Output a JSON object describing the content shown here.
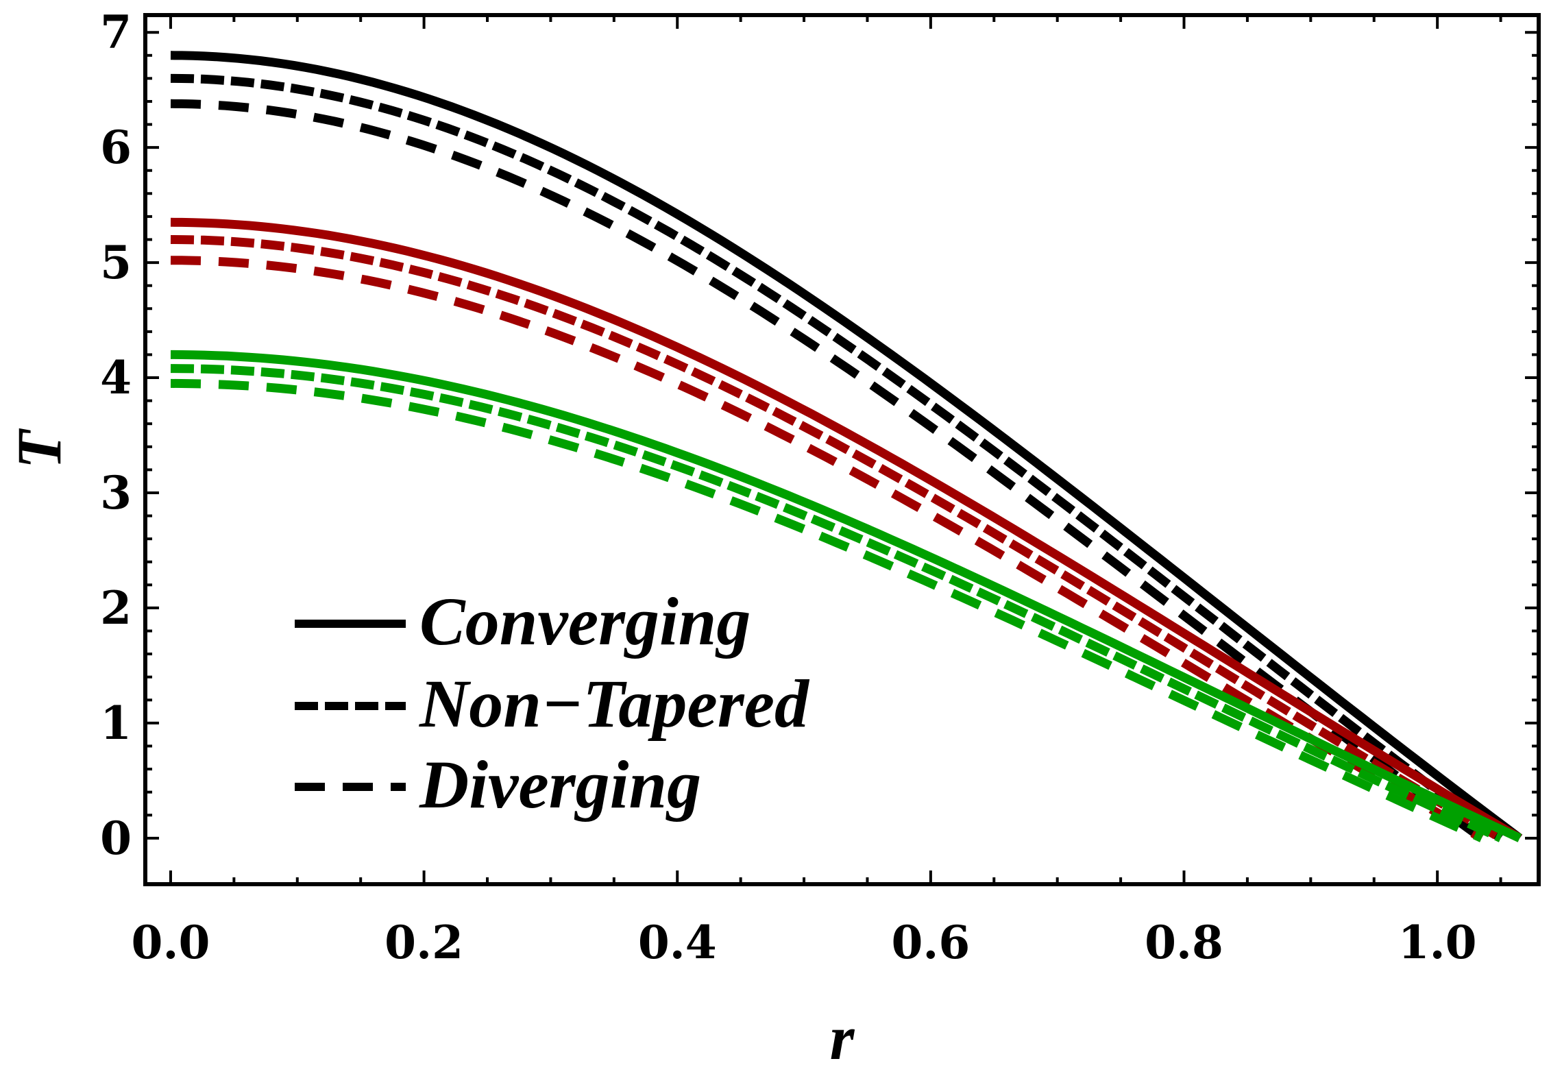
{
  "chart_data": {
    "type": "line",
    "title": "",
    "xlabel": "r",
    "ylabel": "T",
    "xlim": [
      -0.02,
      1.08
    ],
    "ylim": [
      -0.4,
      7.15
    ],
    "xticks": [
      "0.0",
      "0.2",
      "0.4",
      "0.6",
      "0.8",
      "1.0"
    ],
    "xtick_values": [
      0.0,
      0.2,
      0.4,
      0.6,
      0.8,
      1.0
    ],
    "yticks": [
      "0",
      "1",
      "2",
      "3",
      "4",
      "5",
      "6",
      "7"
    ],
    "ytick_values": [
      0,
      1,
      2,
      3,
      4,
      5,
      6,
      7
    ],
    "grid": false,
    "legend": {
      "position": "bottom-left",
      "entries": [
        {
          "label": "Converging",
          "style": "solid"
        },
        {
          "label": "Non−Tapered",
          "style": "dash-short"
        },
        {
          "label": "Diverging",
          "style": "dash-long"
        }
      ]
    },
    "colors": {
      "black": "#000000",
      "red": "#a00000",
      "green": "#00a000"
    },
    "series": [
      {
        "name": "Converging",
        "group": "black",
        "style": "solid",
        "T0": 6.8,
        "r_end": 1.065
      },
      {
        "name": "Non-Tapered",
        "group": "black",
        "style": "dash-short",
        "T0": 6.6,
        "r_end": 1.05
      },
      {
        "name": "Diverging",
        "group": "black",
        "style": "dash-long",
        "T0": 6.38,
        "r_end": 1.035
      },
      {
        "name": "Converging",
        "group": "red",
        "style": "solid",
        "T0": 5.35,
        "r_end": 1.065
      },
      {
        "name": "Non-Tapered",
        "group": "red",
        "style": "dash-short",
        "T0": 5.2,
        "r_end": 1.05
      },
      {
        "name": "Diverging",
        "group": "red",
        "style": "dash-long",
        "T0": 5.02,
        "r_end": 1.035
      },
      {
        "name": "Converging",
        "group": "green",
        "style": "solid",
        "T0": 4.2,
        "r_end": 1.065
      },
      {
        "name": "Non-Tapered",
        "group": "green",
        "style": "dash-short",
        "T0": 4.08,
        "r_end": 1.05
      },
      {
        "name": "Diverging",
        "group": "green",
        "style": "dash-long",
        "T0": 3.95,
        "r_end": 1.035
      }
    ]
  }
}
